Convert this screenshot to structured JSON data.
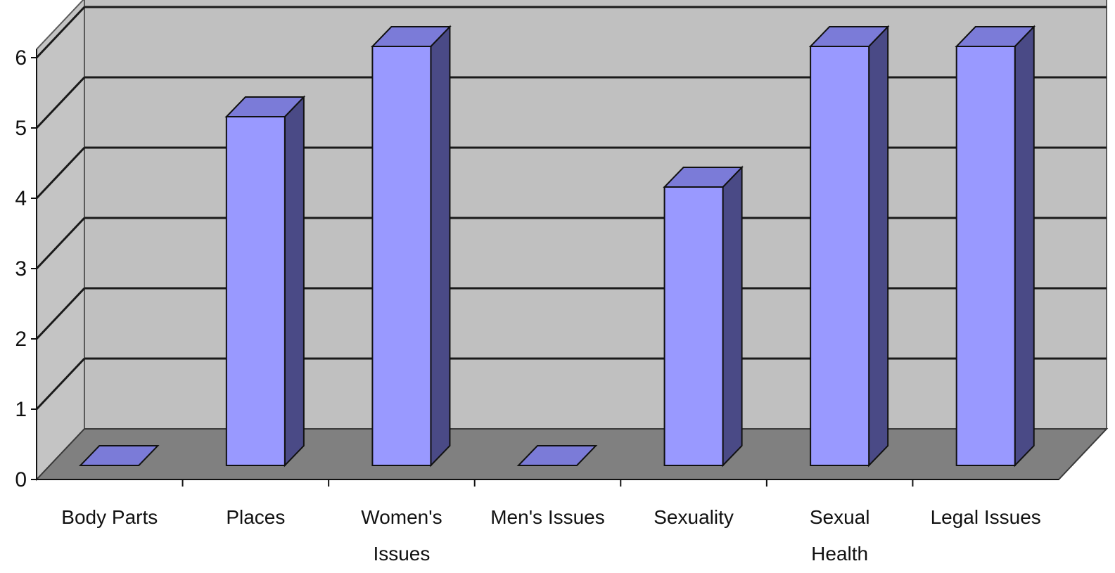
{
  "chart_data": {
    "type": "bar",
    "style": "3d-column",
    "title": "",
    "xlabel": "",
    "ylabel": "",
    "categories": [
      [
        "Body Parts"
      ],
      [
        "Places"
      ],
      [
        "Women's",
        "Issues"
      ],
      [
        "Men's Issues"
      ],
      [
        "Sexuality"
      ],
      [
        "Sexual",
        "Health"
      ],
      [
        "Legal Issues"
      ]
    ],
    "values": [
      0,
      5,
      6,
      0,
      4,
      6,
      6
    ],
    "ylim": [
      0,
      6
    ],
    "yticks": [
      "0",
      "1",
      "2",
      "3",
      "4",
      "5",
      "6"
    ],
    "grid": true,
    "legend": "none",
    "colors": {
      "bar_front": "#9999ff",
      "bar_top": "#7b7bd8",
      "bar_side": "#4a4a86",
      "back_wall": "#c0c0c0",
      "side_wall": "#c4c4c4",
      "floor": "#808080",
      "gridline": "#1a1a1a",
      "axis": "#111111"
    }
  }
}
